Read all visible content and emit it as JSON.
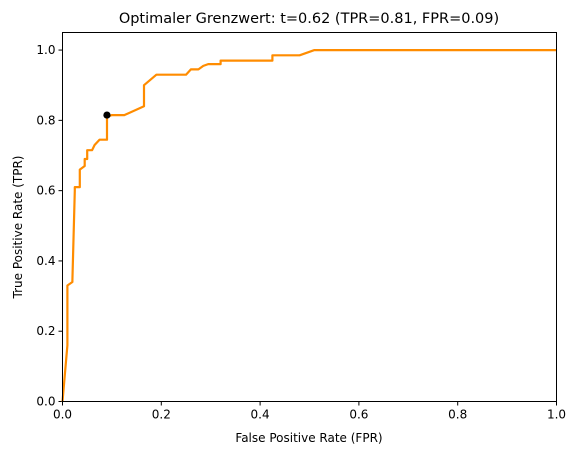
{
  "chart_data": {
    "type": "line",
    "title": "Optimaler Grenzwert: t=0.62 (TPR=0.81, FPR=0.09)",
    "xlabel": "False Positive Rate (FPR)",
    "ylabel": "True Positive Rate (TPR)",
    "xlim": [
      0.0,
      1.0
    ],
    "ylim": [
      0.0,
      1.05
    ],
    "x_ticks": [
      0.0,
      0.2,
      0.4,
      0.6,
      0.8,
      1.0
    ],
    "x_tick_labels": [
      "0.0",
      "0.2",
      "0.4",
      "0.6",
      "0.8",
      "1.0"
    ],
    "y_ticks": [
      0.0,
      0.2,
      0.4,
      0.6,
      0.8,
      1.0
    ],
    "y_tick_labels": [
      "0.0",
      "0.2",
      "0.4",
      "0.6",
      "0.8",
      "1.0"
    ],
    "grid": false,
    "series": [
      {
        "color": "#ff8c00",
        "x": [
          0.0,
          0.01,
          0.01,
          0.02,
          0.02,
          0.025,
          0.025,
          0.035,
          0.035,
          0.045,
          0.045,
          0.05,
          0.05,
          0.06,
          0.065,
          0.075,
          0.09,
          0.09,
          0.1,
          0.125,
          0.165,
          0.165,
          0.19,
          0.25,
          0.26,
          0.275,
          0.285,
          0.295,
          0.32,
          0.32,
          0.4,
          0.425,
          0.425,
          0.48,
          0.5,
          0.51,
          0.8,
          1.0
        ],
        "y": [
          0.0,
          0.16,
          0.33,
          0.34,
          0.345,
          0.6,
          0.61,
          0.61,
          0.66,
          0.67,
          0.69,
          0.69,
          0.715,
          0.715,
          0.73,
          0.745,
          0.745,
          0.81,
          0.815,
          0.815,
          0.84,
          0.9,
          0.93,
          0.93,
          0.945,
          0.945,
          0.955,
          0.96,
          0.96,
          0.97,
          0.97,
          0.97,
          0.985,
          0.985,
          0.995,
          1.0,
          1.0,
          1.0
        ]
      }
    ],
    "optimal_point": {
      "x": 0.09,
      "y": 0.815,
      "color": "#000000"
    }
  }
}
